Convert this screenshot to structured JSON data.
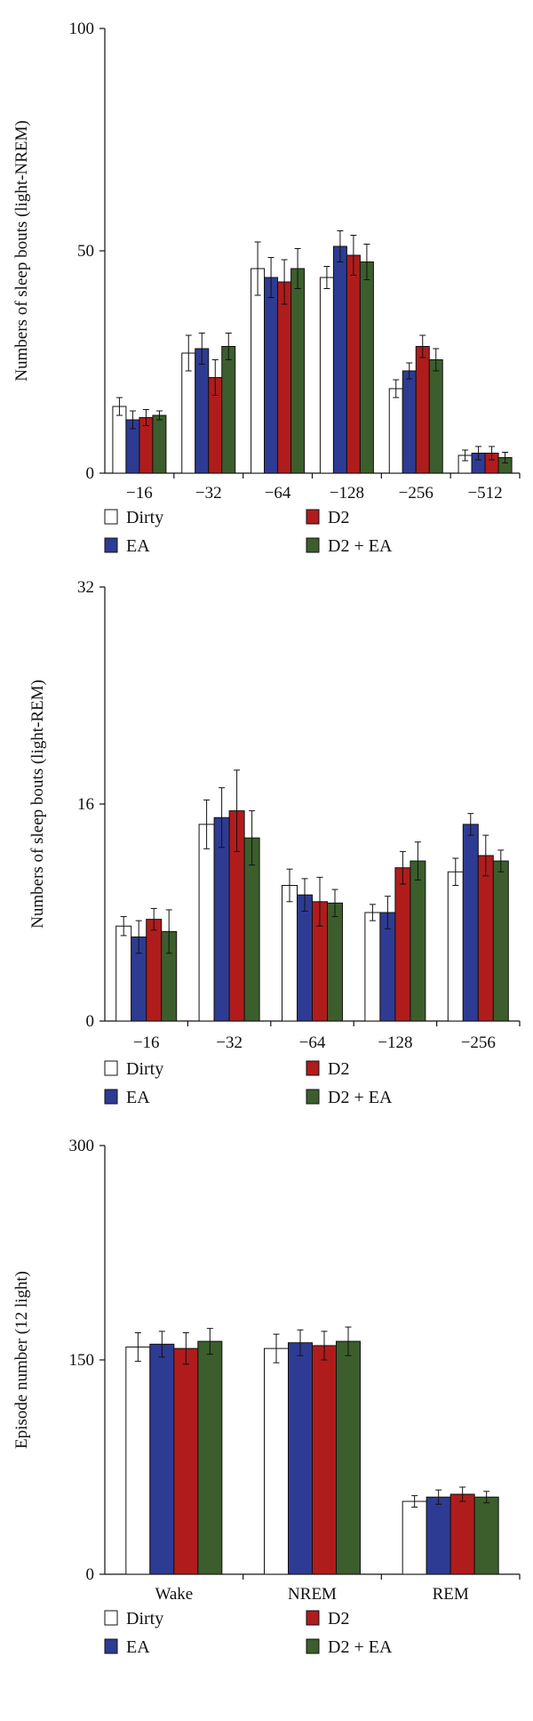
{
  "chart_data": [
    {
      "type": "bar",
      "ylabel": "Numbers of sleep bouts (light-NREM)",
      "ylim": [
        0,
        100
      ],
      "yticks": [
        "0",
        "50",
        "100"
      ],
      "categories": [
        "−16",
        "−32",
        "−64",
        "−128",
        "−256",
        "−512"
      ],
      "series": [
        {
          "name": "Dirty",
          "color": "#ffffff",
          "values": [
            15,
            27,
            46,
            44,
            19,
            4
          ],
          "errors": [
            2.0,
            4.0,
            6.0,
            2.5,
            2.0,
            1.2
          ]
        },
        {
          "name": "EA",
          "color": "#2e3b93",
          "values": [
            12,
            28,
            44,
            51,
            23,
            4.5
          ],
          "errors": [
            2.0,
            3.5,
            4.5,
            3.5,
            1.8,
            1.5
          ]
        },
        {
          "name": "D2",
          "color": "#b01c1c",
          "values": [
            12.5,
            21.5,
            43,
            49,
            28.5,
            4.5
          ],
          "errors": [
            1.8,
            4.0,
            5.0,
            4.5,
            2.5,
            1.5
          ]
        },
        {
          "name": "D2 + EA",
          "color": "#3c5e2c",
          "values": [
            13,
            28.5,
            46,
            47.5,
            25.5,
            3.5
          ],
          "errors": [
            1.0,
            3.0,
            4.5,
            4.0,
            2.5,
            1.2
          ]
        }
      ],
      "legend": "bottom"
    },
    {
      "type": "bar",
      "ylabel": "Numbers of sleep bouts (light-REM)",
      "ylim": [
        0,
        32
      ],
      "yticks": [
        "0",
        "16",
        "32"
      ],
      "categories": [
        "−16",
        "−32",
        "−64",
        "−128",
        "−256"
      ],
      "series": [
        {
          "name": "Dirty",
          "color": "#ffffff",
          "values": [
            7,
            14.5,
            10,
            8,
            11
          ],
          "errors": [
            0.7,
            1.8,
            1.2,
            0.6,
            1.0
          ]
        },
        {
          "name": "EA",
          "color": "#2e3b93",
          "values": [
            6.2,
            15,
            9.3,
            8,
            14.5
          ],
          "errors": [
            1.2,
            2.2,
            1.2,
            1.2,
            0.8
          ]
        },
        {
          "name": "D2",
          "color": "#b01c1c",
          "values": [
            7.5,
            15.5,
            8.8,
            11.3,
            12.2
          ],
          "errors": [
            0.8,
            3.0,
            1.8,
            1.2,
            1.5
          ]
        },
        {
          "name": "D2 + EA",
          "color": "#3c5e2c",
          "values": [
            6.6,
            13.5,
            8.7,
            11.8,
            11.8
          ],
          "errors": [
            1.6,
            2.0,
            1.0,
            1.4,
            0.8
          ]
        }
      ],
      "legend": "bottom"
    },
    {
      "type": "bar",
      "ylabel": "Episode number (12 light)",
      "ylim": [
        0,
        300
      ],
      "yticks": [
        "0",
        "150",
        "300"
      ],
      "categories": [
        "Wake",
        "NREM",
        "REM"
      ],
      "series": [
        {
          "name": "Dirty",
          "color": "#ffffff",
          "values": [
            159,
            158,
            51
          ],
          "errors": [
            10,
            10,
            4
          ]
        },
        {
          "name": "EA",
          "color": "#2e3b93",
          "values": [
            161,
            162,
            54
          ],
          "errors": [
            9,
            9,
            5
          ]
        },
        {
          "name": "D2",
          "color": "#b01c1c",
          "values": [
            158,
            160,
            56
          ],
          "errors": [
            11,
            10,
            5
          ]
        },
        {
          "name": "D2 + EA",
          "color": "#3c5e2c",
          "values": [
            163,
            163,
            54
          ],
          "errors": [
            9,
            10,
            4
          ]
        }
      ],
      "legend": "bottom"
    }
  ]
}
